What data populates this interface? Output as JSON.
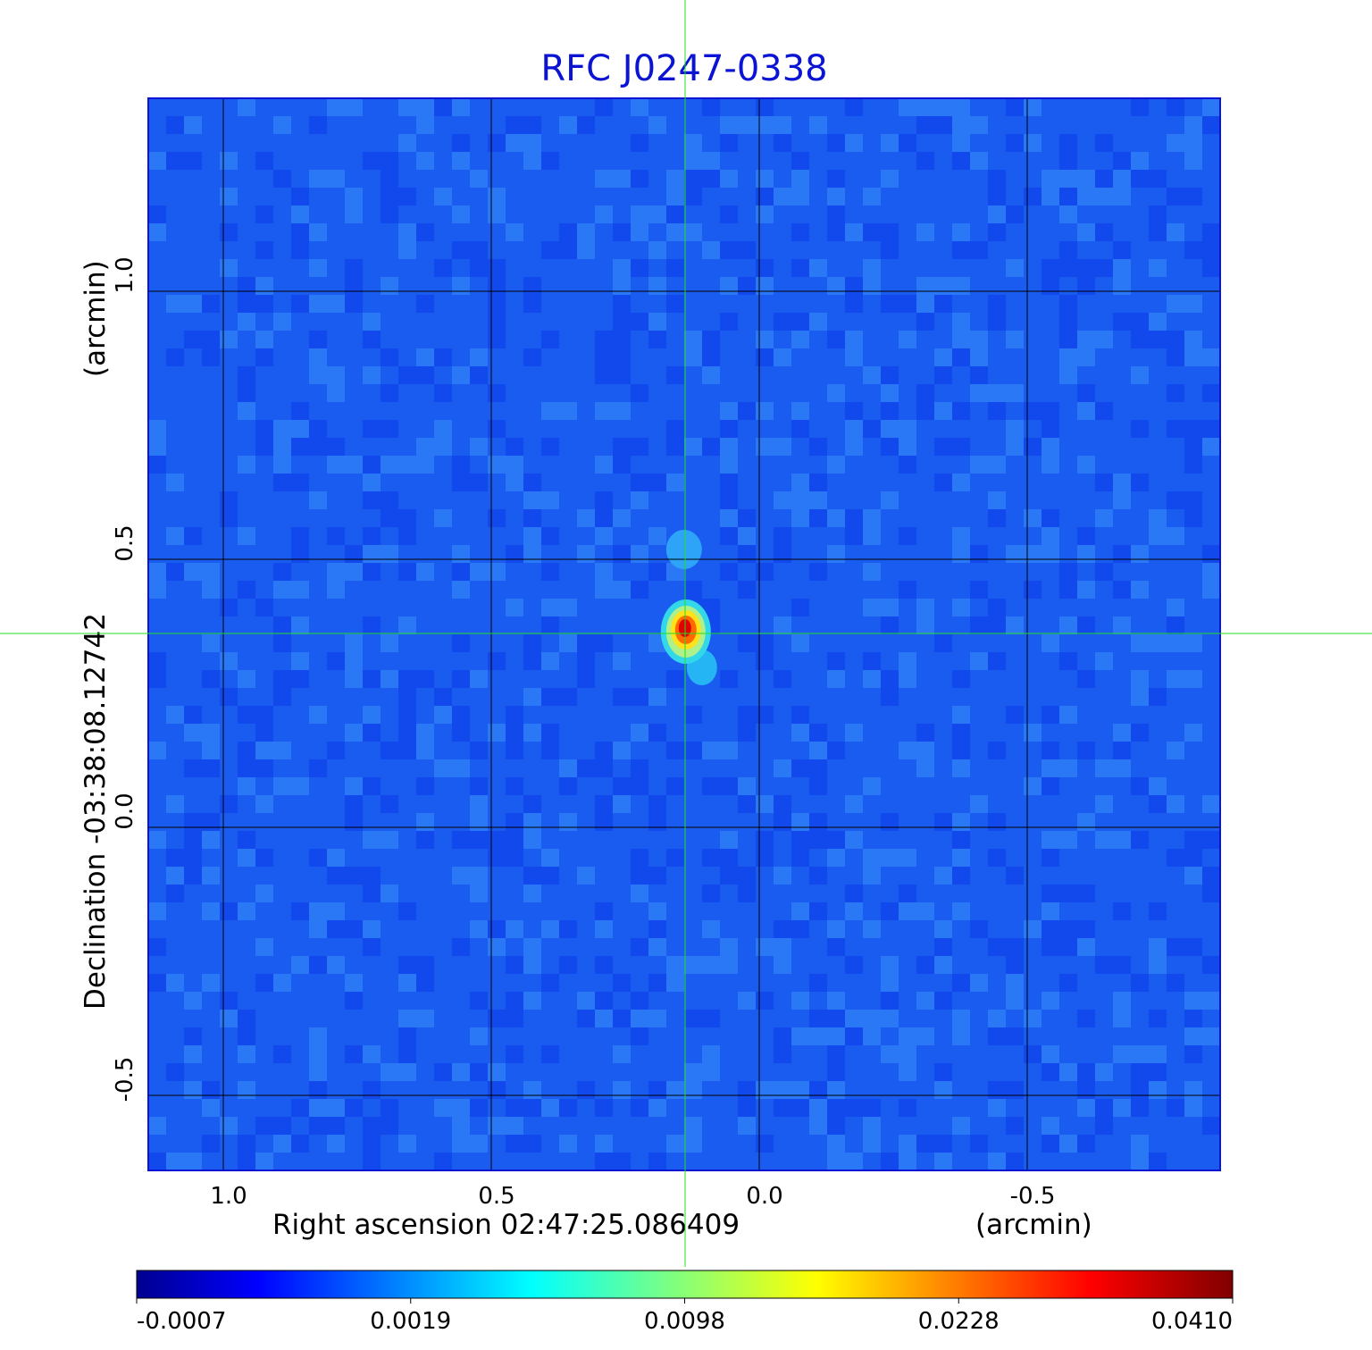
{
  "chart_data": {
    "type": "heatmap",
    "title": "RFC J0247-0338",
    "xlabel": "Right ascension  02:47:25.086409",
    "xunit": "(arcmin)",
    "ylabel": "Declination  -03:38:08.12742",
    "yunit": "(arcmin)",
    "xlim": [
      1.14,
      -0.86
    ],
    "ylim": [
      -0.64,
      1.36
    ],
    "x_ticks": [
      1.0,
      0.5,
      0.0,
      -0.5
    ],
    "x_tick_labels": [
      "1.0",
      "0.5",
      "0.0",
      "-0.5"
    ],
    "y_ticks": [
      1.0,
      0.5,
      0.0,
      -0.5
    ],
    "y_tick_labels": [
      "1.0",
      "0.5",
      "0.0",
      "-0.5"
    ],
    "grid": true,
    "crosshair": {
      "x": 0.137,
      "y": 0.365
    },
    "source_peak": {
      "x": 0.137,
      "y": 0.365,
      "value": 0.041
    },
    "colormap": "jet",
    "colorbar": {
      "ticks": [
        "-0.0007",
        "0.0019",
        "0.0098",
        "0.0228",
        "0.0410"
      ],
      "colors": [
        "#00008f",
        "#0000ff",
        "#00ffff",
        "#ffff00",
        "#ff0000",
        "#800000"
      ]
    },
    "background_color": "#1b5cf0"
  }
}
